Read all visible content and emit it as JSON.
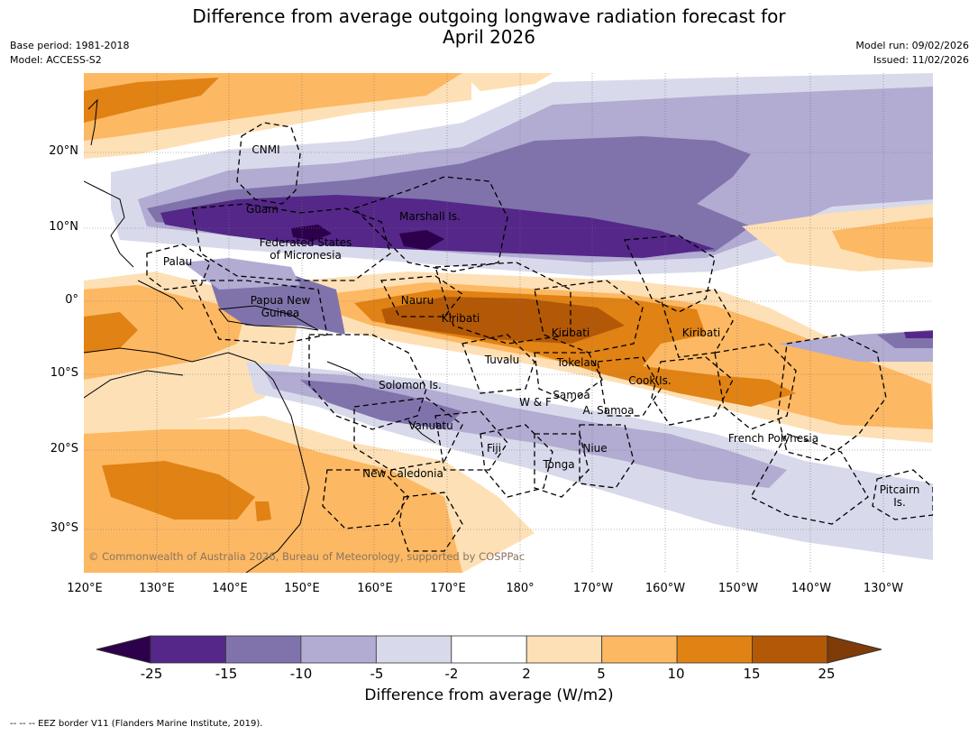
{
  "title": {
    "line1": "Difference from average outgoing longwave radiation forecast for",
    "line2": "April 2026"
  },
  "meta": {
    "base_period": "Base period: 1981-2018",
    "model": "Model: ACCESS-S2",
    "model_run": "Model run: 09/02/2026",
    "issued": "Issued: 11/02/2026"
  },
  "axes": {
    "longitudes": [
      "120°E",
      "130°E",
      "140°E",
      "150°E",
      "160°E",
      "170°E",
      "180°",
      "170°W",
      "160°W",
      "150°W",
      "140°W",
      "130°W"
    ],
    "latitudes": [
      "20°N",
      "10°N",
      "0°",
      "10°S",
      "20°S",
      "30°S"
    ]
  },
  "labels": {
    "cnmi": "CNMI",
    "guam": "Guam",
    "marshall": "Marshall Is.",
    "fsm1": "Federated States",
    "fsm2": "of Micronesia",
    "palau": "Palau",
    "png1": "Papua New",
    "png2": "Guinea",
    "nauru": "Nauru",
    "kiribati1": "Kiribati",
    "kiribati2": "Kiribati",
    "kiribati3": "Kiribati",
    "tuvalu": "Tuvalu",
    "tokelau": "Tokelau",
    "cook": "Cook Is.",
    "solomon": "Solomon Is.",
    "wf": "W & F",
    "samoa": "Samoa",
    "asamoa": "A. Samoa",
    "vanuatu": "Vanuatu",
    "fiji": "Fiji",
    "niue": "Niue",
    "tonga": "Tonga",
    "frpoly": "French Polynesia",
    "newcal": "New Caledonia",
    "pitcairn1": "Pitcairn",
    "pitcairn2": "Is."
  },
  "copyright": "© Commonwealth of Australia 2026, Bureau of Meteorology, supported by COSPPac",
  "colorbar": {
    "title": "Difference from average (W/m2)",
    "ticks": [
      "-25",
      "-15",
      "-10",
      "-5",
      "-2",
      "2",
      "5",
      "10",
      "15",
      "25"
    ],
    "colors": [
      "#2d004b",
      "#542788",
      "#8073ac",
      "#b2abd2",
      "#d8daeb",
      "#ffffff",
      "#fee0b6",
      "#fdb863",
      "#e08214",
      "#b35806",
      "#7f3b08"
    ]
  },
  "footnote": "--  --  -- EEZ border V11 (Flanders Marine Institute, 2019)."
}
